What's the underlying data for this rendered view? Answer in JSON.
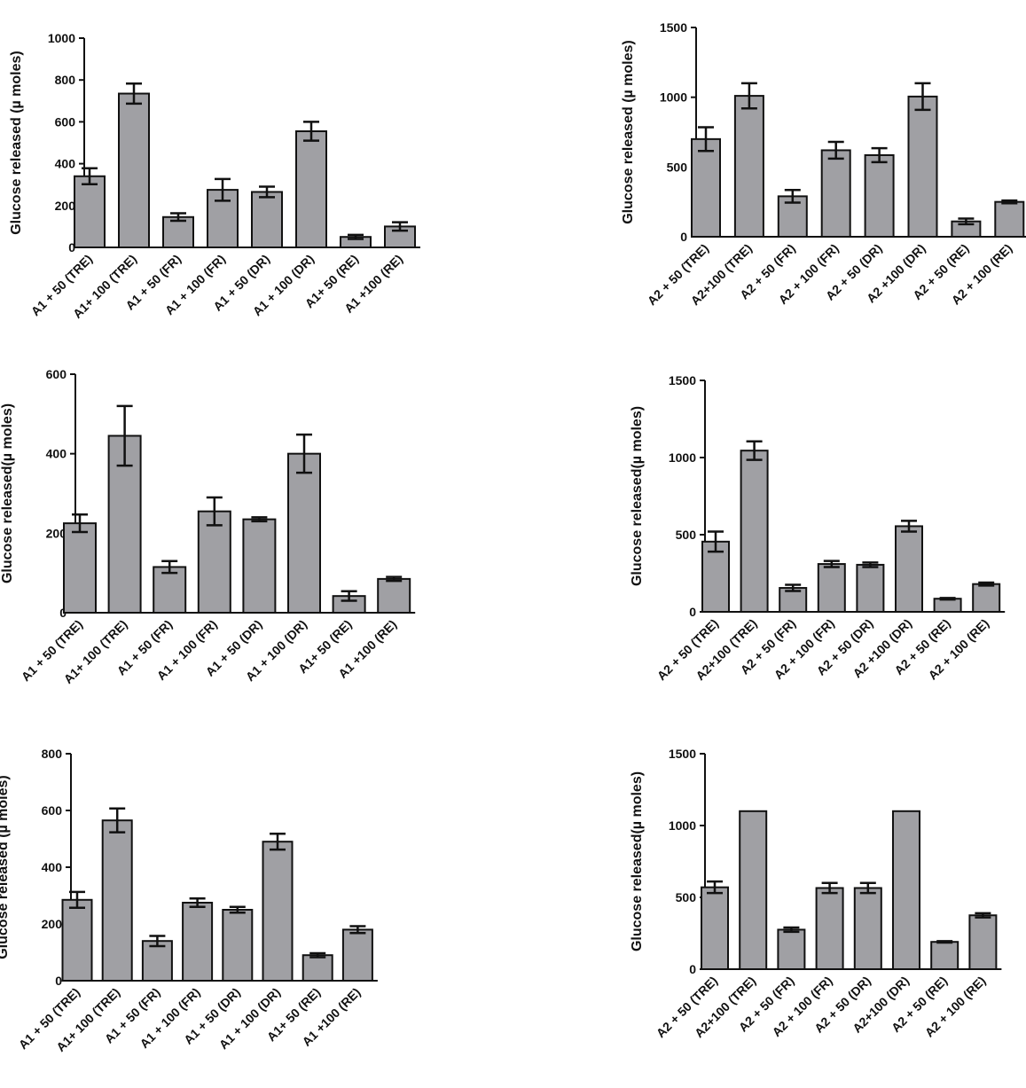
{
  "style": {
    "bar_fill": "#a0a0a4",
    "bar_stroke": "#111111",
    "axis_color": "#111111"
  },
  "chart_data": [
    {
      "type": "bar",
      "ylabel": "Glucose released (µ moles)",
      "ylim": [
        0,
        1000
      ],
      "yticks": [
        0,
        200,
        400,
        600,
        800,
        1000
      ],
      "categories": [
        "A1 + 50 (TRE)",
        "A1+ 100 (TRE)",
        "A1 + 50 (FR)",
        "A1 + 100 (FR)",
        "A1 + 50 (DR)",
        "A1 + 100 (DR)",
        "A1+ 50 (RE)",
        "A1 +100 (RE)"
      ],
      "values": [
        340,
        735,
        145,
        275,
        265,
        555,
        50,
        100
      ],
      "errors": [
        38,
        48,
        18,
        52,
        25,
        45,
        10,
        20
      ]
    },
    {
      "type": "bar",
      "ylabel": "Glucose released (µ moles)",
      "ylim": [
        0,
        1500
      ],
      "yticks": [
        0,
        500,
        1000,
        1500
      ],
      "categories": [
        "A2 + 50 (TRE)",
        "A2+100 (TRE)",
        "A2 + 50 (FR)",
        "A2 + 100 (FR)",
        "A2 + 50 (DR)",
        "A2 +100 (DR)",
        "A2 + 50 (RE)",
        "A2 + 100 (RE)"
      ],
      "values": [
        700,
        1010,
        290,
        620,
        585,
        1005,
        110,
        250
      ],
      "errors": [
        85,
        90,
        45,
        60,
        50,
        95,
        20,
        10
      ]
    },
    {
      "type": "bar",
      "ylabel": "Glucose released(µ moles)",
      "ylim": [
        0,
        600
      ],
      "yticks": [
        0,
        200,
        400,
        600
      ],
      "categories": [
        "A1 + 50 (TRE)",
        "A1+ 100 (TRE)",
        "A1 + 50 (FR)",
        "A1 + 100 (FR)",
        "A1 + 50 (DR)",
        "A1 + 100 (DR)",
        "A1+ 50 (RE)",
        "A1 +100 (RE)"
      ],
      "values": [
        225,
        445,
        115,
        255,
        235,
        400,
        42,
        85
      ],
      "errors": [
        22,
        75,
        15,
        35,
        5,
        48,
        12,
        5
      ]
    },
    {
      "type": "bar",
      "ylabel": "Glucose released(µ moles)",
      "ylim": [
        0,
        1500
      ],
      "yticks": [
        0,
        500,
        1000,
        1500
      ],
      "categories": [
        "A2 + 50 (TRE)",
        "A2+100 (TRE)",
        "A2 + 50 (FR)",
        "A2 + 100 (FR)",
        "A2 + 50 (DR)",
        "A2 +100 (DR)",
        "A2 + 50 (RE)",
        "A2 + 100 (RE)"
      ],
      "values": [
        455,
        1045,
        155,
        310,
        305,
        555,
        85,
        180
      ],
      "errors": [
        65,
        60,
        20,
        20,
        15,
        35,
        5,
        10
      ]
    },
    {
      "type": "bar",
      "ylabel": "Glucose released (µ moles)",
      "ylim": [
        0,
        800
      ],
      "yticks": [
        0,
        200,
        400,
        600,
        800
      ],
      "categories": [
        "A1 + 50 (TRE)",
        "A1+ 100 (TRE)",
        "A1 + 50 (FR)",
        "A1 + 100 (FR)",
        "A1 + 50 (DR)",
        "A1 + 100 (DR)",
        "A1+ 50 (RE)",
        "A1 +100 (RE)"
      ],
      "values": [
        285,
        565,
        140,
        275,
        250,
        490,
        90,
        180
      ],
      "errors": [
        28,
        42,
        18,
        15,
        10,
        28,
        7,
        12
      ]
    },
    {
      "type": "bar",
      "ylabel": "Glucose released(µ moles)",
      "ylim": [
        0,
        1500
      ],
      "yticks": [
        0,
        500,
        1000,
        1500
      ],
      "categories": [
        "A2 + 50 (TRE)",
        "A2+100 (TRE)",
        "A2 + 50 (FR)",
        "A2 + 100 (FR)",
        "A2 + 50 (DR)",
        "A2+100 (DR)",
        "A2 + 50 (RE)",
        "A2 + 100 (RE)"
      ],
      "values": [
        570,
        1100,
        275,
        565,
        565,
        1100,
        190,
        375
      ],
      "errors": [
        40,
        0,
        15,
        35,
        35,
        0,
        5,
        15
      ]
    }
  ]
}
